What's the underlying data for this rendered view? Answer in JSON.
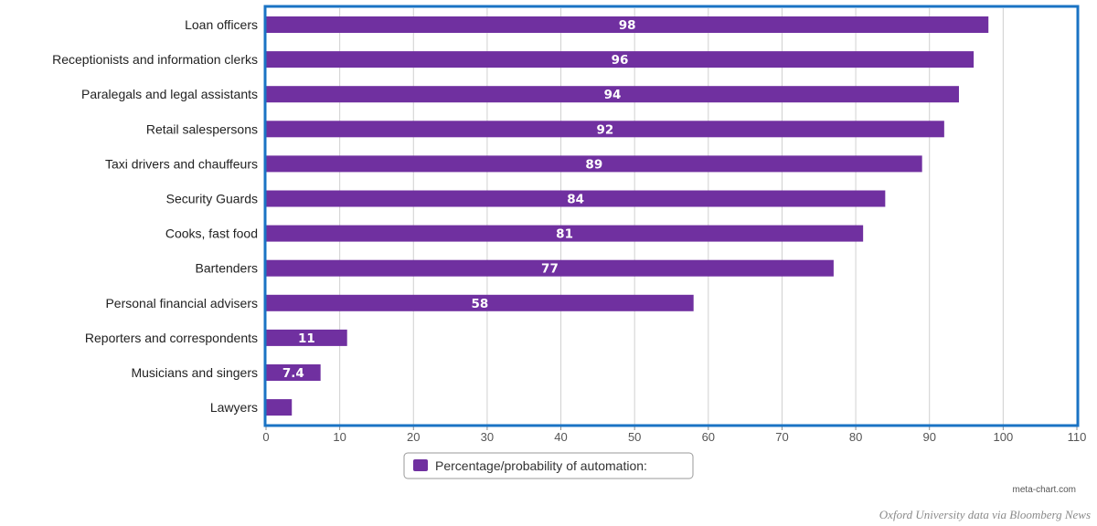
{
  "chart_data": {
    "type": "bar",
    "orientation": "horizontal",
    "categories": [
      "Loan officers",
      "Receptionists and information clerks",
      "Paralegals and legal assistants",
      "Retail salespersons",
      "Taxi drivers and chauffeurs",
      "Security Guards",
      "Cooks, fast food",
      "Bartenders",
      "Personal financial advisers",
      "Reporters and correspondents",
      "Musicians and singers",
      "Lawyers"
    ],
    "values": [
      98,
      96,
      94,
      92,
      89,
      84,
      81,
      77,
      58,
      11,
      7.4,
      3.5
    ],
    "data_labels": [
      "98",
      "96",
      "94",
      "92",
      "89",
      "84",
      "81",
      "77",
      "58",
      "11",
      "7.4",
      ""
    ],
    "xlim": [
      0,
      110
    ],
    "xticks": [
      0,
      10,
      20,
      30,
      40,
      50,
      60,
      70,
      80,
      90,
      100,
      110
    ],
    "grid": "vertical",
    "legend": {
      "position": "bottom-center",
      "label": "Percentage/probability of automation:"
    },
    "colors": {
      "bar": "#7030a0",
      "frame": "#1a73c4",
      "grid": "#d0d0d0",
      "legend_border": "#9a9a9a"
    }
  },
  "watermark": "meta-chart.com",
  "source": "Oxford University data via Bloomberg News"
}
